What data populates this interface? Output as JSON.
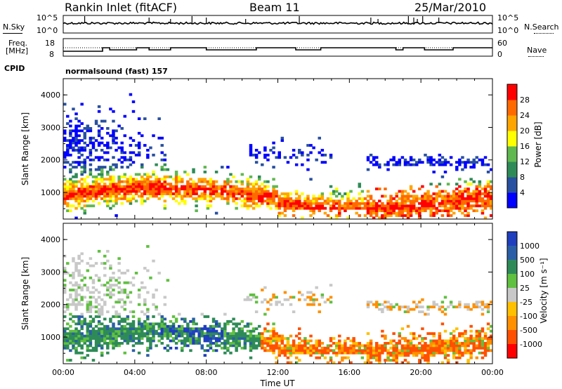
{
  "header": {
    "station": "Rankin Inlet (fitACF)",
    "beam": "Beam 11",
    "date": "25/Mar/2010"
  },
  "panels": {
    "nsky_label": "N.Sky",
    "nsearch_label": "N.Search",
    "nsky_ticks": [
      "10^5",
      "10^0"
    ],
    "nsearch_ticks": [
      "10^5",
      "10^0"
    ],
    "freq_label": "Freq.",
    "freq_unit": "[MHz]",
    "freq_ticks": [
      "18",
      "8"
    ],
    "nave_label": "Nave",
    "nave_ticks": [
      "60",
      "0"
    ],
    "cpid_label": "CPID",
    "cpid_value": "normalsound (fast) 157"
  },
  "chart_data": [
    {
      "type": "heatmap",
      "name": "power",
      "ylabel": "Slant Range [km]",
      "xlabel": "",
      "yticks": [
        "1000",
        "2000",
        "3000",
        "4000"
      ],
      "ylim": [
        180,
        4500
      ],
      "xlim": [
        0,
        24
      ],
      "colorbar": {
        "label": "Power [dB]",
        "ticks": [
          "4",
          "8",
          "12",
          "16",
          "20",
          "24",
          "28"
        ],
        "colors": [
          "#0000ff",
          "#2850a0",
          "#2e8b57",
          "#60b850",
          "#ffff00",
          "#ffa500",
          "#ff6a00",
          "#ff0000"
        ]
      }
    },
    {
      "type": "heatmap",
      "name": "velocity",
      "ylabel": "Slant Range [km]",
      "xlabel": "Time UT",
      "xticks": [
        "00:00",
        "04:00",
        "08:00",
        "12:00",
        "16:00",
        "20:00",
        "00:00"
      ],
      "yticks": [
        "1000",
        "2000",
        "3000",
        "4000"
      ],
      "ylim": [
        180,
        4500
      ],
      "xlim": [
        0,
        24
      ],
      "colorbar": {
        "label": "Velocity [m s⁻¹]",
        "ticks": [
          "1000",
          "500",
          "100",
          "25",
          "-25",
          "-100",
          "-500",
          "-1000"
        ],
        "colors": [
          "#1f3fbf",
          "#2a5fa8",
          "#2e8b57",
          "#60c040",
          "#c8c8c8",
          "#ffc000",
          "#ff9000",
          "#ff5000",
          "#ff0000"
        ]
      }
    }
  ]
}
